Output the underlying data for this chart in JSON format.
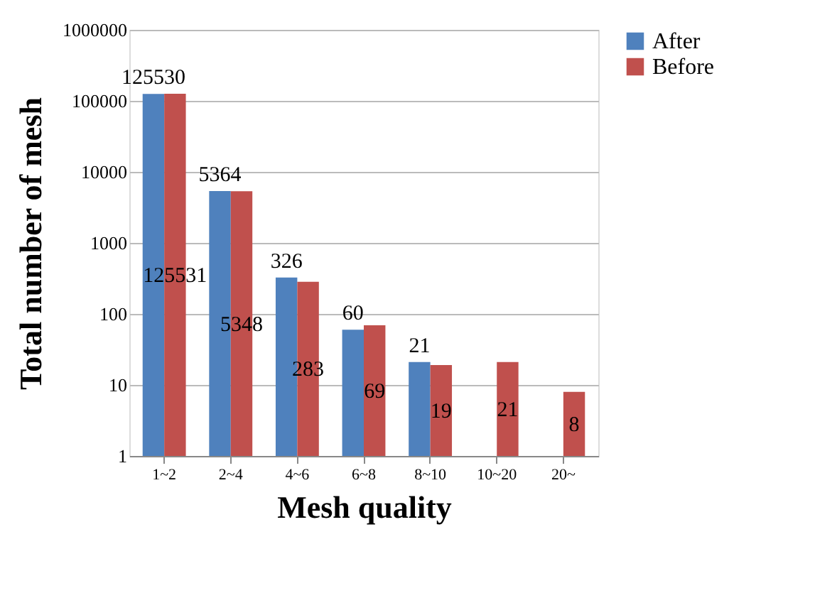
{
  "chart_data": {
    "type": "bar",
    "xlabel": "Mesh quality",
    "ylabel": "Total number of mesh",
    "categories": [
      "1~2",
      "2~4",
      "4~6",
      "6~8",
      "8~10",
      "10~20",
      "20~"
    ],
    "series": [
      {
        "name": "After",
        "color": "#4f81bd",
        "values": [
          125530,
          5364,
          326,
          60,
          21,
          null,
          null
        ]
      },
      {
        "name": "Before",
        "color": "#c0504d",
        "values": [
          125531,
          5348,
          283,
          69,
          19,
          21,
          8
        ]
      }
    ],
    "log": true,
    "ylim": [
      1,
      1000000
    ],
    "yticks": [
      1,
      10,
      100,
      1000,
      10000,
      100000,
      1000000
    ],
    "grid": "y",
    "legend": "right",
    "data_labels": true
  }
}
